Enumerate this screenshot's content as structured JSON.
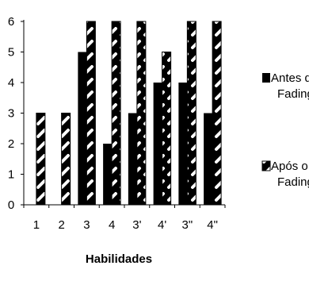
{
  "chart_data": {
    "type": "bar",
    "categories": [
      "1",
      "2",
      "3",
      "4",
      "3'",
      "4'",
      "3\"",
      "4\""
    ],
    "series": [
      {
        "name": "Antes do Fading",
        "values": [
          0,
          0,
          5,
          2,
          3,
          4,
          4,
          3
        ],
        "pattern": "solid-black"
      },
      {
        "name": "Após o Fading",
        "values": [
          3,
          3,
          6,
          6,
          6,
          5,
          6,
          6
        ],
        "pattern": "diagonal-stripes"
      }
    ],
    "title": "",
    "xlabel": "Habilidades",
    "ylabel": "",
    "ylim": [
      0,
      6
    ],
    "yticks": [
      0,
      1,
      2,
      3,
      4,
      5,
      6
    ],
    "grid": false,
    "legend_position": "right",
    "colors": {
      "bar": "#000000",
      "stripe": "#ffffff",
      "axis": "#000000"
    }
  }
}
